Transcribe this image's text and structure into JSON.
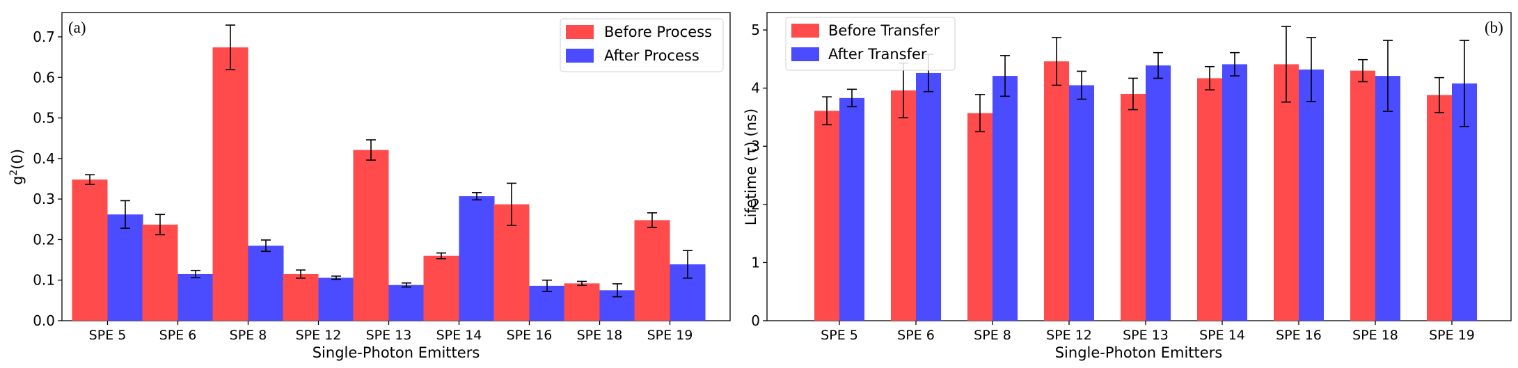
{
  "colors": {
    "before": "#ff4b4b",
    "after": "#4b4bff",
    "axis": "#000000",
    "error": "#000000"
  },
  "chart_data": [
    {
      "type": "bar",
      "panel_label": "(a)",
      "xlabel": "Single-Photon Emitters",
      "ylabel": "g",
      "ylabel_sup": "2",
      "ylabel_tail": "(0)",
      "categories": [
        "SPE 5",
        "SPE 6",
        "SPE 8",
        "SPE 12",
        "SPE 13",
        "SPE 14",
        "SPE 16",
        "SPE 18",
        "SPE 19"
      ],
      "ylim": [
        0,
        0.76
      ],
      "yticks": [
        "0.0",
        "0.1",
        "0.2",
        "0.3",
        "0.4",
        "0.5",
        "0.6",
        "0.7"
      ],
      "ytick_values": [
        0,
        0.1,
        0.2,
        0.3,
        0.4,
        0.5,
        0.6,
        0.7
      ],
      "legend_position": "top-right",
      "series": [
        {
          "name": "Before Process",
          "values": [
            0.348,
            0.237,
            0.674,
            0.115,
            0.421,
            0.16,
            0.287,
            0.092,
            0.248
          ],
          "errors": [
            0.012,
            0.025,
            0.055,
            0.01,
            0.025,
            0.007,
            0.052,
            0.005,
            0.018
          ]
        },
        {
          "name": "After Process",
          "values": [
            0.262,
            0.115,
            0.185,
            0.106,
            0.088,
            0.307,
            0.086,
            0.075,
            0.139
          ],
          "errors": [
            0.034,
            0.009,
            0.014,
            0.004,
            0.005,
            0.009,
            0.014,
            0.016,
            0.034
          ]
        }
      ]
    },
    {
      "type": "bar",
      "panel_label": "(b)",
      "xlabel": "Single-Photon Emitters",
      "ylabel": "Lifetime (τ) (ns)",
      "categories": [
        "SPE 5",
        "SPE 6",
        "SPE 8",
        "SPE 12",
        "SPE 13",
        "SPE 14",
        "SPE 16",
        "SPE 18",
        "SPE 19"
      ],
      "ylim": [
        0,
        5.3
      ],
      "yticks": [
        "0",
        "1",
        "2",
        "3",
        "4",
        "5"
      ],
      "ytick_values": [
        0,
        1,
        2,
        3,
        4,
        5
      ],
      "legend_position": "top-left",
      "series": [
        {
          "name": "Before Transfer",
          "values": [
            3.61,
            3.96,
            3.57,
            4.46,
            3.9,
            4.17,
            4.41,
            4.3,
            3.88
          ],
          "errors": [
            0.24,
            0.47,
            0.32,
            0.41,
            0.27,
            0.2,
            0.65,
            0.19,
            0.3
          ]
        },
        {
          "name": "After Transfer",
          "values": [
            3.83,
            4.26,
            4.21,
            4.05,
            4.39,
            4.41,
            4.32,
            4.21,
            4.08
          ],
          "errors": [
            0.15,
            0.32,
            0.35,
            0.24,
            0.22,
            0.2,
            0.55,
            0.61,
            0.74
          ]
        }
      ]
    }
  ]
}
